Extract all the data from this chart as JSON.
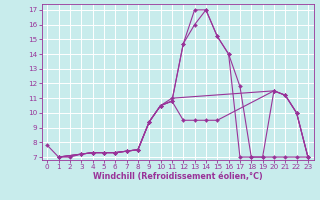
{
  "xlabel": "Windchill (Refroidissement éolien,°C)",
  "background_color": "#c8ecec",
  "grid_color": "#ffffff",
  "line_color": "#993399",
  "xlim": [
    -0.5,
    23.5
  ],
  "ylim": [
    6.8,
    17.4
  ],
  "yticks": [
    7,
    8,
    9,
    10,
    11,
    12,
    13,
    14,
    15,
    16,
    17
  ],
  "xticks": [
    0,
    1,
    2,
    3,
    4,
    5,
    6,
    7,
    8,
    9,
    10,
    11,
    12,
    13,
    14,
    15,
    16,
    17,
    18,
    19,
    20,
    21,
    22,
    23
  ],
  "series": [
    {
      "x": [
        0,
        1,
        2,
        3,
        4,
        5,
        6,
        7,
        8,
        9,
        10,
        11,
        12,
        13,
        14,
        15,
        16,
        17,
        18,
        19,
        20,
        21,
        22,
        23
      ],
      "y": [
        7.8,
        7.0,
        7.0,
        7.2,
        7.3,
        7.3,
        7.3,
        7.4,
        7.5,
        9.4,
        10.5,
        10.8,
        14.7,
        17.0,
        17.0,
        15.2,
        14.0,
        7.0,
        7.0,
        7.0,
        7.0,
        7.0,
        7.0,
        7.0
      ]
    },
    {
      "x": [
        1,
        3,
        4,
        5,
        6,
        7,
        8,
        9,
        10,
        11,
        12,
        13,
        14,
        15,
        16,
        17,
        18,
        19,
        20,
        21,
        22,
        23
      ],
      "y": [
        7.0,
        7.2,
        7.3,
        7.3,
        7.3,
        7.4,
        7.5,
        9.4,
        10.5,
        10.8,
        14.7,
        16.0,
        17.0,
        15.2,
        14.0,
        11.8,
        7.0,
        7.0,
        11.5,
        11.2,
        10.0,
        7.0
      ]
    },
    {
      "x": [
        1,
        3,
        4,
        5,
        6,
        7,
        8,
        9,
        10,
        11,
        12,
        13,
        14,
        15,
        20,
        21,
        22,
        23
      ],
      "y": [
        7.0,
        7.2,
        7.3,
        7.3,
        7.3,
        7.4,
        7.5,
        9.4,
        10.5,
        10.8,
        9.5,
        9.5,
        9.5,
        9.5,
        11.5,
        11.2,
        10.0,
        7.0
      ]
    },
    {
      "x": [
        1,
        3,
        4,
        5,
        6,
        7,
        8,
        9,
        10,
        11,
        20,
        21,
        22,
        23
      ],
      "y": [
        7.0,
        7.2,
        7.3,
        7.3,
        7.3,
        7.4,
        7.5,
        9.4,
        10.5,
        11.0,
        11.5,
        11.2,
        10.0,
        7.0
      ]
    }
  ]
}
